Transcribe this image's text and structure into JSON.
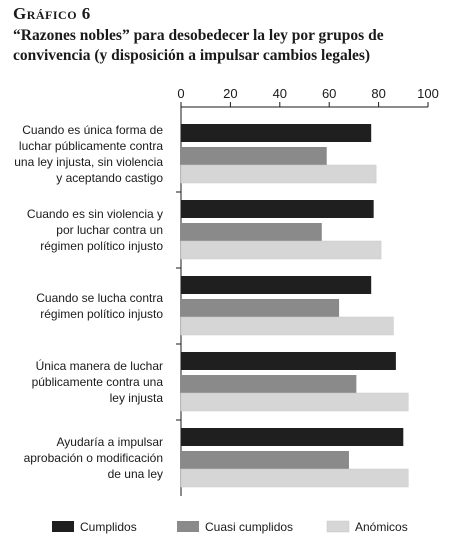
{
  "figure": {
    "label": "Gráfico 6",
    "title": "“Razones nobles” para desobedecer la ley por grupos de convivencia (y disposición a impulsar cambios legales)"
  },
  "colors": {
    "cumplidos": "#1f1f1f",
    "cuasi_cumplidos": "#8a8a8a",
    "anomicos": "#d6d6d6"
  },
  "chart_data": {
    "type": "bar",
    "orientation": "horizontal",
    "categories": [
      [
        "Cuando es única forma de",
        "luchar públicamente contra",
        "una ley injusta, sin violencia",
        "y aceptando castigo"
      ],
      [
        "Cuando es sin violencia y",
        "por luchar contra un",
        "régimen político injusto"
      ],
      [
        "Cuando se lucha contra",
        "régimen político injusto"
      ],
      [
        "Única manera de luchar",
        "públicamente contra una",
        "ley injusta"
      ],
      [
        "Ayudaría a impulsar",
        "aprobación o modificación",
        "de una ley"
      ]
    ],
    "series": [
      {
        "name": "Cumplidos",
        "values": [
          77,
          78,
          77,
          87,
          90
        ]
      },
      {
        "name": "Cuasi cumplidos",
        "values": [
          59,
          57,
          64,
          71,
          68
        ]
      },
      {
        "name": "Anómicos",
        "values": [
          79,
          81,
          86,
          92,
          92
        ]
      }
    ],
    "xlim": [
      0,
      100
    ],
    "xticks": [
      0,
      20,
      40,
      60,
      80,
      100
    ],
    "axis_position": "top",
    "legend_position": "bottom",
    "grid": false
  }
}
